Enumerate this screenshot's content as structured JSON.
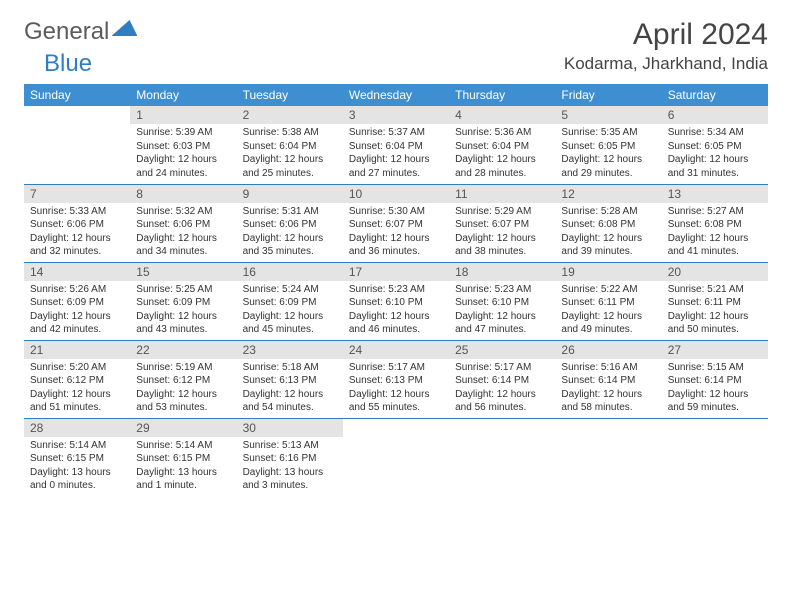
{
  "brand": {
    "part1": "General",
    "part2": "Blue"
  },
  "title": "April 2024",
  "location": "Kodarma, Jharkhand, India",
  "colors": {
    "header_bg": "#3d8fd1",
    "rule": "#2f7ec2",
    "daynum_bg": "#e4e4e4",
    "text": "#333333",
    "title_text": "#444444"
  },
  "weekdays": [
    "Sunday",
    "Monday",
    "Tuesday",
    "Wednesday",
    "Thursday",
    "Friday",
    "Saturday"
  ],
  "weeks": [
    [
      null,
      {
        "n": "1",
        "sr": "Sunrise: 5:39 AM",
        "ss": "Sunset: 6:03 PM",
        "dl1": "Daylight: 12 hours",
        "dl2": "and 24 minutes."
      },
      {
        "n": "2",
        "sr": "Sunrise: 5:38 AM",
        "ss": "Sunset: 6:04 PM",
        "dl1": "Daylight: 12 hours",
        "dl2": "and 25 minutes."
      },
      {
        "n": "3",
        "sr": "Sunrise: 5:37 AM",
        "ss": "Sunset: 6:04 PM",
        "dl1": "Daylight: 12 hours",
        "dl2": "and 27 minutes."
      },
      {
        "n": "4",
        "sr": "Sunrise: 5:36 AM",
        "ss": "Sunset: 6:04 PM",
        "dl1": "Daylight: 12 hours",
        "dl2": "and 28 minutes."
      },
      {
        "n": "5",
        "sr": "Sunrise: 5:35 AM",
        "ss": "Sunset: 6:05 PM",
        "dl1": "Daylight: 12 hours",
        "dl2": "and 29 minutes."
      },
      {
        "n": "6",
        "sr": "Sunrise: 5:34 AM",
        "ss": "Sunset: 6:05 PM",
        "dl1": "Daylight: 12 hours",
        "dl2": "and 31 minutes."
      }
    ],
    [
      {
        "n": "7",
        "sr": "Sunrise: 5:33 AM",
        "ss": "Sunset: 6:06 PM",
        "dl1": "Daylight: 12 hours",
        "dl2": "and 32 minutes."
      },
      {
        "n": "8",
        "sr": "Sunrise: 5:32 AM",
        "ss": "Sunset: 6:06 PM",
        "dl1": "Daylight: 12 hours",
        "dl2": "and 34 minutes."
      },
      {
        "n": "9",
        "sr": "Sunrise: 5:31 AM",
        "ss": "Sunset: 6:06 PM",
        "dl1": "Daylight: 12 hours",
        "dl2": "and 35 minutes."
      },
      {
        "n": "10",
        "sr": "Sunrise: 5:30 AM",
        "ss": "Sunset: 6:07 PM",
        "dl1": "Daylight: 12 hours",
        "dl2": "and 36 minutes."
      },
      {
        "n": "11",
        "sr": "Sunrise: 5:29 AM",
        "ss": "Sunset: 6:07 PM",
        "dl1": "Daylight: 12 hours",
        "dl2": "and 38 minutes."
      },
      {
        "n": "12",
        "sr": "Sunrise: 5:28 AM",
        "ss": "Sunset: 6:08 PM",
        "dl1": "Daylight: 12 hours",
        "dl2": "and 39 minutes."
      },
      {
        "n": "13",
        "sr": "Sunrise: 5:27 AM",
        "ss": "Sunset: 6:08 PM",
        "dl1": "Daylight: 12 hours",
        "dl2": "and 41 minutes."
      }
    ],
    [
      {
        "n": "14",
        "sr": "Sunrise: 5:26 AM",
        "ss": "Sunset: 6:09 PM",
        "dl1": "Daylight: 12 hours",
        "dl2": "and 42 minutes."
      },
      {
        "n": "15",
        "sr": "Sunrise: 5:25 AM",
        "ss": "Sunset: 6:09 PM",
        "dl1": "Daylight: 12 hours",
        "dl2": "and 43 minutes."
      },
      {
        "n": "16",
        "sr": "Sunrise: 5:24 AM",
        "ss": "Sunset: 6:09 PM",
        "dl1": "Daylight: 12 hours",
        "dl2": "and 45 minutes."
      },
      {
        "n": "17",
        "sr": "Sunrise: 5:23 AM",
        "ss": "Sunset: 6:10 PM",
        "dl1": "Daylight: 12 hours",
        "dl2": "and 46 minutes."
      },
      {
        "n": "18",
        "sr": "Sunrise: 5:23 AM",
        "ss": "Sunset: 6:10 PM",
        "dl1": "Daylight: 12 hours",
        "dl2": "and 47 minutes."
      },
      {
        "n": "19",
        "sr": "Sunrise: 5:22 AM",
        "ss": "Sunset: 6:11 PM",
        "dl1": "Daylight: 12 hours",
        "dl2": "and 49 minutes."
      },
      {
        "n": "20",
        "sr": "Sunrise: 5:21 AM",
        "ss": "Sunset: 6:11 PM",
        "dl1": "Daylight: 12 hours",
        "dl2": "and 50 minutes."
      }
    ],
    [
      {
        "n": "21",
        "sr": "Sunrise: 5:20 AM",
        "ss": "Sunset: 6:12 PM",
        "dl1": "Daylight: 12 hours",
        "dl2": "and 51 minutes."
      },
      {
        "n": "22",
        "sr": "Sunrise: 5:19 AM",
        "ss": "Sunset: 6:12 PM",
        "dl1": "Daylight: 12 hours",
        "dl2": "and 53 minutes."
      },
      {
        "n": "23",
        "sr": "Sunrise: 5:18 AM",
        "ss": "Sunset: 6:13 PM",
        "dl1": "Daylight: 12 hours",
        "dl2": "and 54 minutes."
      },
      {
        "n": "24",
        "sr": "Sunrise: 5:17 AM",
        "ss": "Sunset: 6:13 PM",
        "dl1": "Daylight: 12 hours",
        "dl2": "and 55 minutes."
      },
      {
        "n": "25",
        "sr": "Sunrise: 5:17 AM",
        "ss": "Sunset: 6:14 PM",
        "dl1": "Daylight: 12 hours",
        "dl2": "and 56 minutes."
      },
      {
        "n": "26",
        "sr": "Sunrise: 5:16 AM",
        "ss": "Sunset: 6:14 PM",
        "dl1": "Daylight: 12 hours",
        "dl2": "and 58 minutes."
      },
      {
        "n": "27",
        "sr": "Sunrise: 5:15 AM",
        "ss": "Sunset: 6:14 PM",
        "dl1": "Daylight: 12 hours",
        "dl2": "and 59 minutes."
      }
    ],
    [
      {
        "n": "28",
        "sr": "Sunrise: 5:14 AM",
        "ss": "Sunset: 6:15 PM",
        "dl1": "Daylight: 13 hours",
        "dl2": "and 0 minutes."
      },
      {
        "n": "29",
        "sr": "Sunrise: 5:14 AM",
        "ss": "Sunset: 6:15 PM",
        "dl1": "Daylight: 13 hours",
        "dl2": "and 1 minute."
      },
      {
        "n": "30",
        "sr": "Sunrise: 5:13 AM",
        "ss": "Sunset: 6:16 PM",
        "dl1": "Daylight: 13 hours",
        "dl2": "and 3 minutes."
      },
      null,
      null,
      null,
      null
    ]
  ]
}
